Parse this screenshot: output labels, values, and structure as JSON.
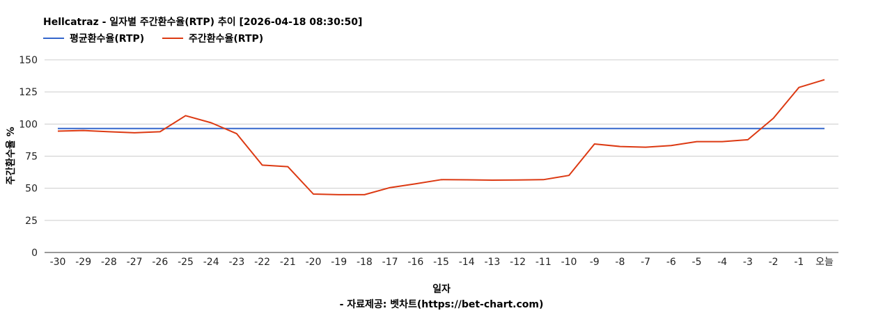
{
  "chart_data": {
    "type": "line",
    "title": "Hellcatraz - 일자별 주간환수율(RTP) 추이 [2026-04-18 08:30:50]",
    "xlabel": "일자",
    "ylabel": "주간환수율 %",
    "source": "- 자료제공: 벳차트(https://bet-chart.com)",
    "categories": [
      "-30",
      "-29",
      "-28",
      "-27",
      "-26",
      "-25",
      "-24",
      "-23",
      "-22",
      "-21",
      "-20",
      "-19",
      "-18",
      "-17",
      "-16",
      "-15",
      "-14",
      "-13",
      "-12",
      "-11",
      "-10",
      "-9",
      "-8",
      "-7",
      "-6",
      "-5",
      "-4",
      "-3",
      "-2",
      "-1",
      "오늘"
    ],
    "yticks": [
      "0",
      "25",
      "50",
      "75",
      "100",
      "125",
      "150"
    ],
    "ylim": [
      0,
      150
    ],
    "grid": true,
    "legend_position": "top-left",
    "series": [
      {
        "name": "평균환수율(RTP)",
        "color": "#3366cc",
        "values": [
          96.5,
          96.5,
          96.5,
          96.5,
          96.5,
          96.5,
          96.5,
          96.5,
          96.5,
          96.5,
          96.5,
          96.5,
          96.5,
          96.5,
          96.5,
          96.5,
          96.5,
          96.5,
          96.5,
          96.5,
          96.5,
          96.5,
          96.5,
          96.5,
          96.5,
          96.5,
          96.5,
          96.5,
          96.5,
          96.5,
          96.5
        ]
      },
      {
        "name": "주간환수율(RTP)",
        "color": "#dc3912",
        "values": [
          94.5,
          95,
          94,
          93.2,
          94,
          106.5,
          101,
          92.5,
          68,
          66.8,
          45.5,
          45,
          45,
          50.5,
          53.5,
          56.7,
          56.6,
          56.3,
          56.5,
          56.7,
          60,
          84.5,
          82.5,
          82,
          83.3,
          86.3,
          86.3,
          87.8,
          104.5,
          128.5,
          134.5
        ]
      }
    ]
  }
}
